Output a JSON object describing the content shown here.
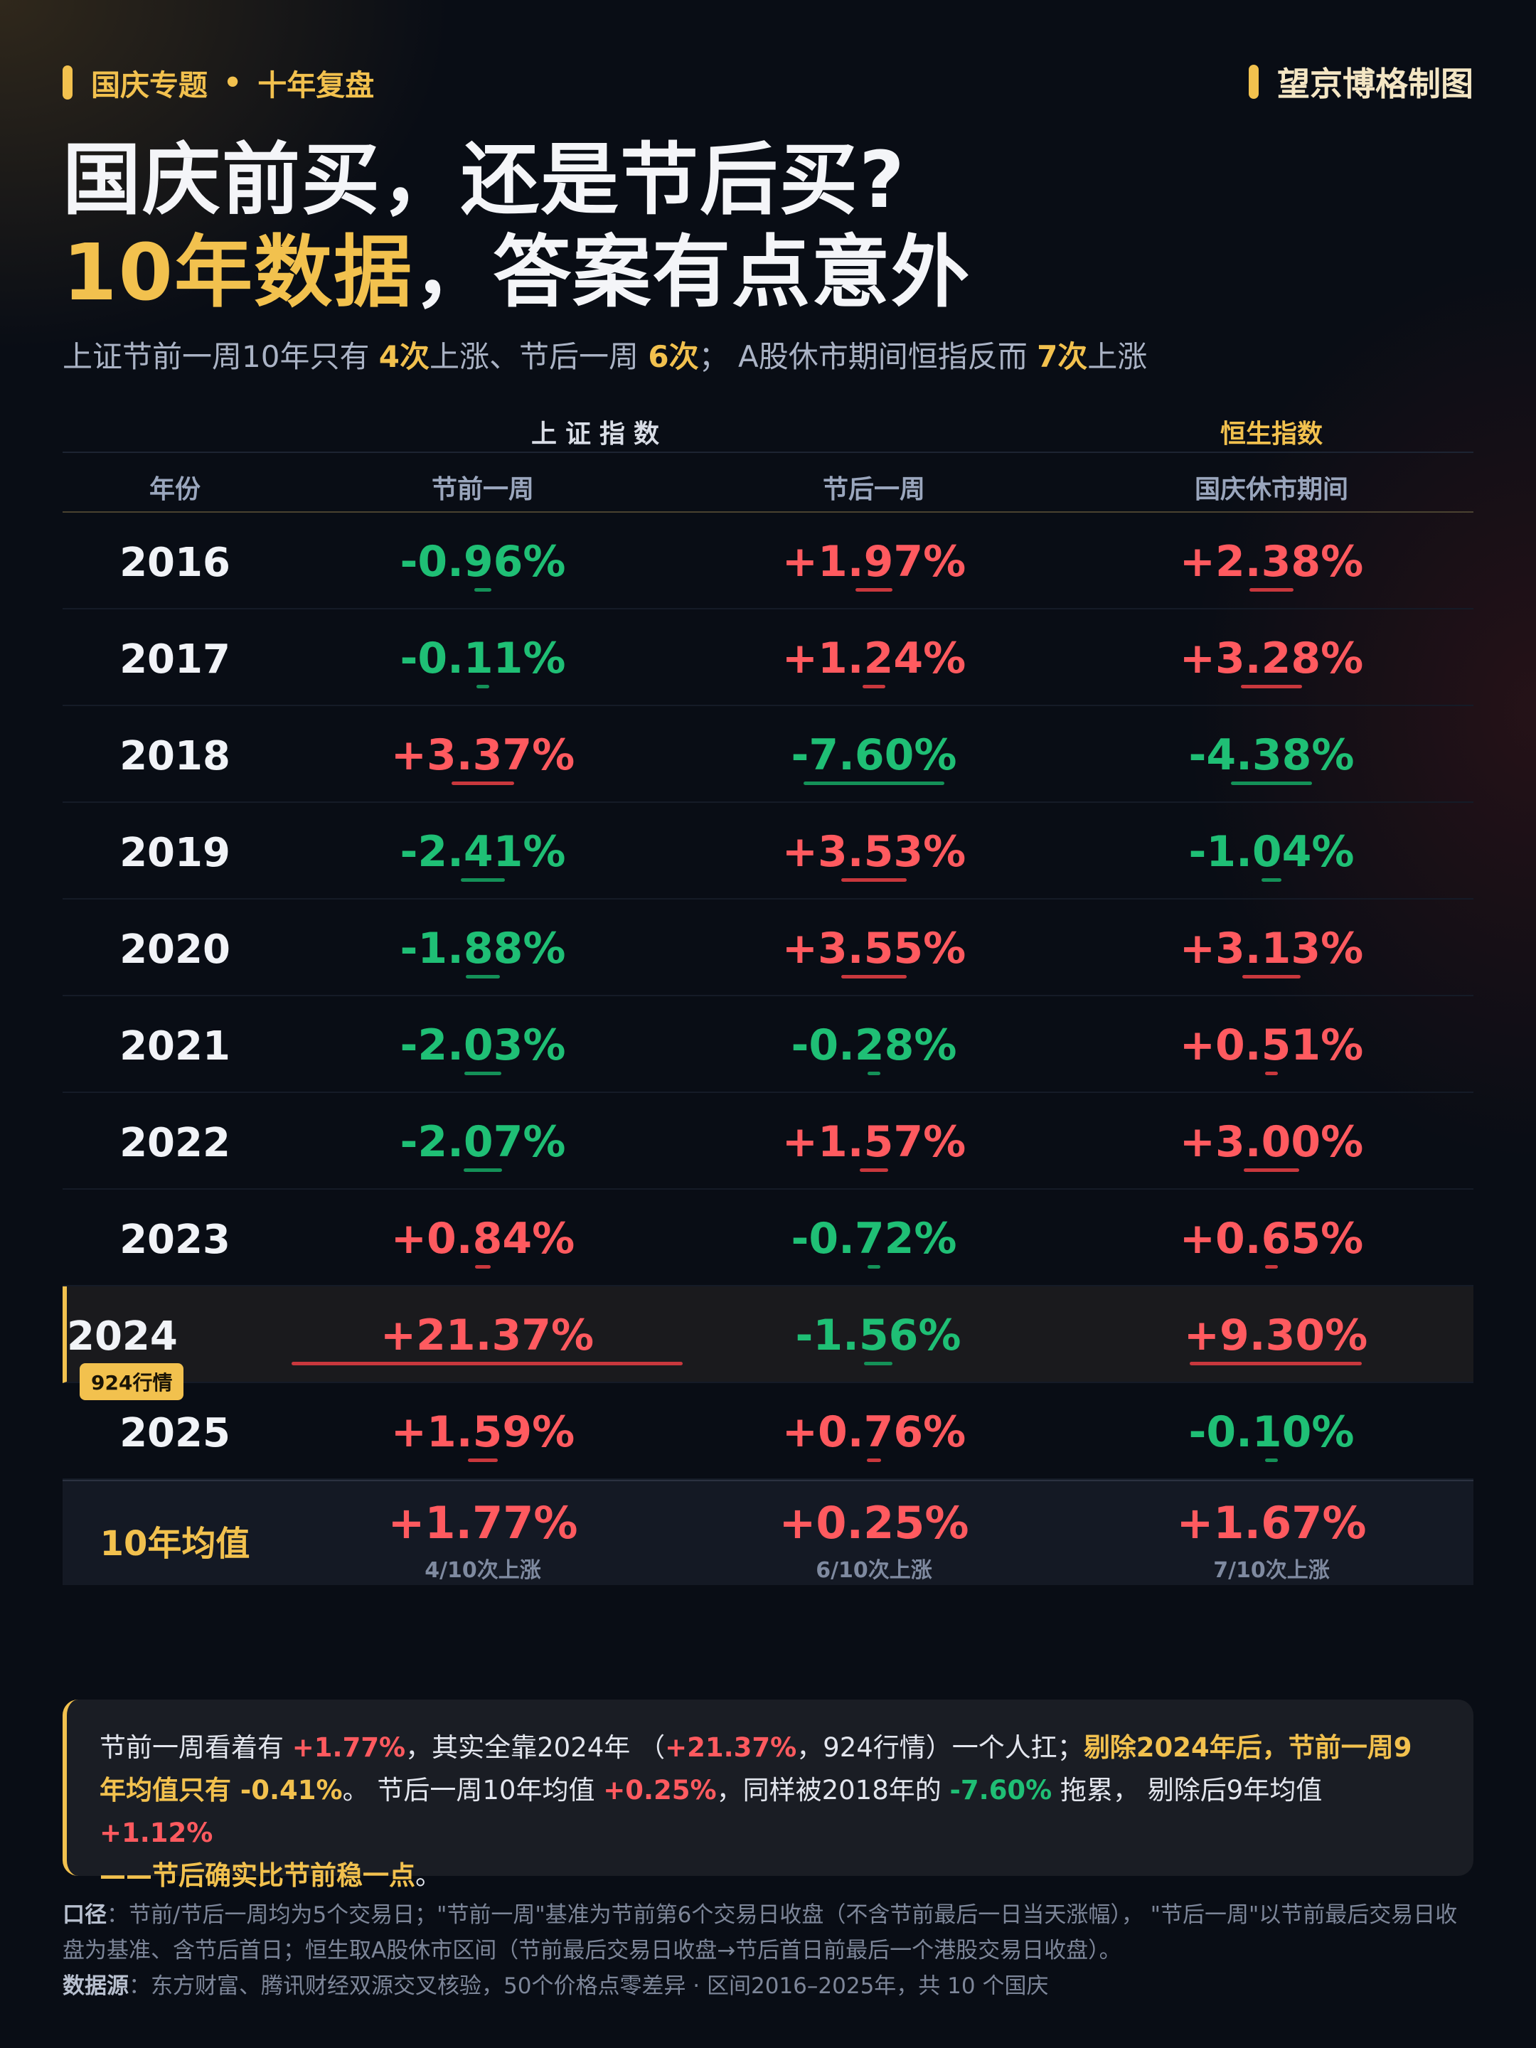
{
  "header": {
    "tag_left": "国庆专题",
    "tag_sep": "•",
    "tag_right": "十年复盘",
    "brand": "望京博格制图"
  },
  "title": {
    "line1": "国庆前买，还是节后买?",
    "line2_gold": "10年数据",
    "line2_rest": "，答案有点意外"
  },
  "subtitle": {
    "p1": "上证节前一周10年只有 ",
    "b1": "4次",
    "p2": "上涨、节后一周 ",
    "b2": "6次",
    "p3": "；  A股休市期间恒指反而 ",
    "b3": "7次",
    "p4": "上涨"
  },
  "table": {
    "group_a": "上证指数",
    "group_b": "恒生指数",
    "headers": [
      "年份",
      "节前一周",
      "节后一周",
      "国庆休市期间"
    ],
    "rows": [
      {
        "year": "2016",
        "pre": "-0.96%",
        "post": "+1.97%",
        "hsi": "+2.38%"
      },
      {
        "year": "2017",
        "pre": "-0.11%",
        "post": "+1.24%",
        "hsi": "+3.28%"
      },
      {
        "year": "2018",
        "pre": "+3.37%",
        "post": "-7.60%",
        "hsi": "-4.38%"
      },
      {
        "year": "2019",
        "pre": "-2.41%",
        "post": "+3.53%",
        "hsi": "-1.04%"
      },
      {
        "year": "2020",
        "pre": "-1.88%",
        "post": "+3.55%",
        "hsi": "+3.13%"
      },
      {
        "year": "2021",
        "pre": "-2.03%",
        "post": "-0.28%",
        "hsi": "+0.51%"
      },
      {
        "year": "2022",
        "pre": "-2.07%",
        "post": "+1.57%",
        "hsi": "+3.00%"
      },
      {
        "year": "2023",
        "pre": "+0.84%",
        "post": "-0.72%",
        "hsi": "+0.65%"
      },
      {
        "year": "2024",
        "badge": "924行情",
        "pre": "+21.37%",
        "post": "-1.56%",
        "hsi": "+9.30%"
      },
      {
        "year": "2025",
        "pre": "+1.59%",
        "post": "+0.76%",
        "hsi": "-0.10%"
      }
    ],
    "avg": {
      "label": "10年均值",
      "pre": "+1.77%",
      "pre_sub": "4/10次上涨",
      "post": "+0.25%",
      "post_sub": "6/10次上涨",
      "hsi": "+1.67%",
      "hsi_sub": "7/10次上涨"
    }
  },
  "note": {
    "t1": "节前一周看着有 ",
    "r1": "+1.77%",
    "t2": "，其实全靠2024年  （",
    "r2": "+21.37%",
    "t3": "，924行情）一个人扛；",
    "y1": "剔除2024年后，节前一周9年均值只有 -0.41%",
    "t4": "。 节后一周10年均值 ",
    "r3": "+0.25%",
    "t5": "，同样被2018年的 ",
    "g1": "-7.60%",
    "t6": " 拖累，  剔除后9年均值 ",
    "r4": "+1.12%",
    "y2": "——节后确实比节前稳一点",
    "t7": "。"
  },
  "footer": {
    "k1": "口径",
    "v1": "：节前/节后一周均为5个交易日；\"节前一周\"基准为节前第6个交易日收盘（不含节前最后一日当天涨幅），  \"节后一周\"以节前最后交易日收盘为基准、含节后首日；恒生取A股休市区间（节前最后交易日收盘→节后首日前最后一个港股交易日收盘）。",
    "k2": "数据源",
    "v2": "：东方财富、腾讯财经双源交叉核验，50个价格点零差异 · 区间2016–2025年，共 10 个国庆"
  },
  "colors": {
    "gold": "#f2c14e",
    "up_red": "#ff5a5f",
    "down_green": "#1fbf75",
    "background": "#090d15"
  }
}
